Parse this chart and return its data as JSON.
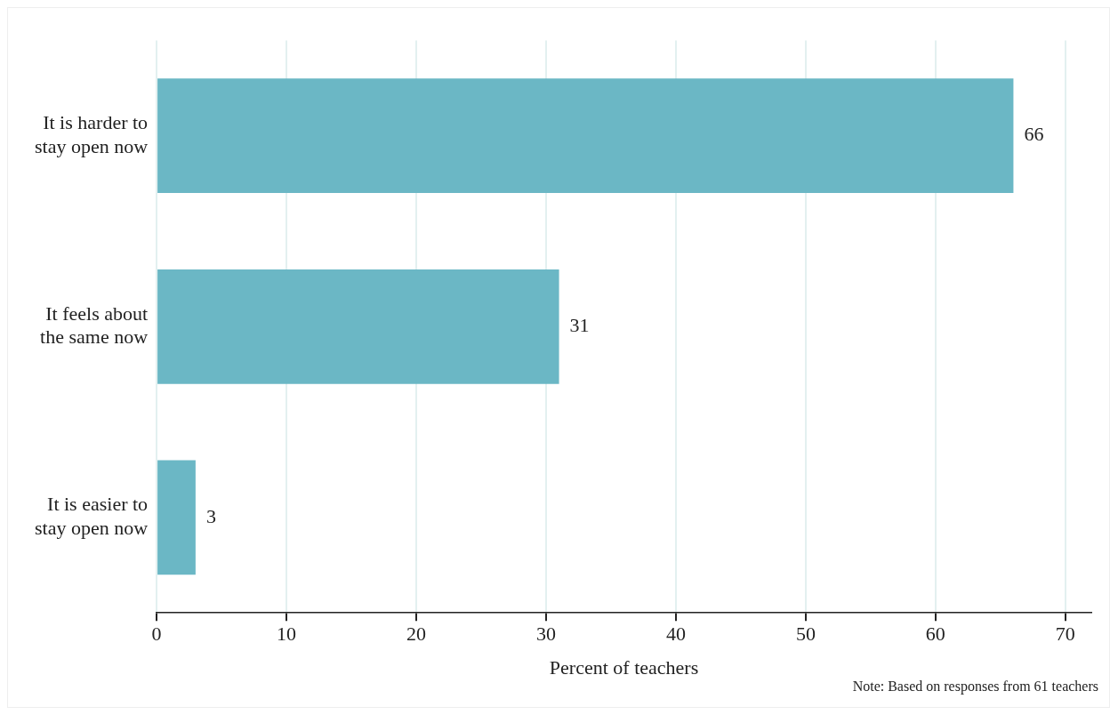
{
  "chart_data": {
    "type": "bar",
    "orientation": "horizontal",
    "xlabel": "Percent of teachers",
    "categories": [
      "It is harder to stay open now",
      "It feels about the same now",
      "It is easier to stay open now"
    ],
    "values": [
      66,
      31,
      3
    ],
    "color": "#6bb7c5",
    "xlim": [
      0,
      72
    ],
    "xticks": [
      0,
      10,
      20,
      30,
      40,
      50,
      60,
      70
    ],
    "grid": "x",
    "data_labels": true,
    "legend": false,
    "annotations": [
      "Note: Based on responses from 61 teachers"
    ]
  }
}
